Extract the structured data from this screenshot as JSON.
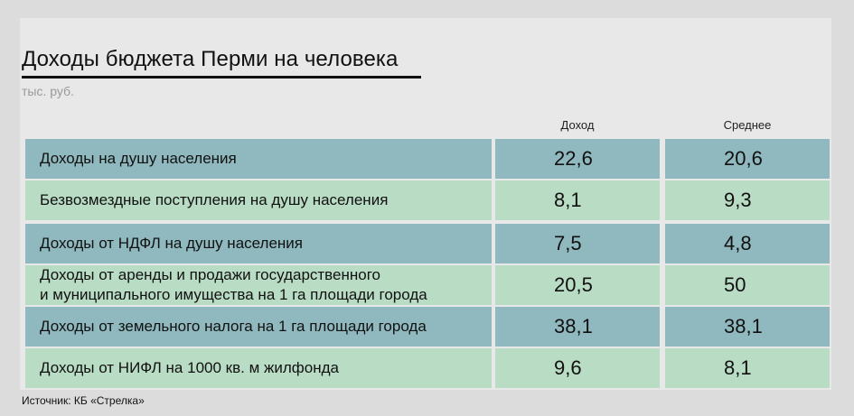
{
  "chart_data": {
    "type": "table",
    "title": "Доходы бюджета Перми на человека",
    "unit": "тыс. руб.",
    "columns": [
      "Доход",
      "Среднее"
    ],
    "rows": [
      {
        "label": "Доходы на душу населения",
        "values": [
          "22,6",
          "20,6"
        ]
      },
      {
        "label": "Безвозмездные поступления на душу населения",
        "values": [
          "8,1",
          "9,3"
        ]
      },
      {
        "label": "Доходы от НДФЛ на душу населения",
        "values": [
          "7,5",
          "4,8"
        ]
      },
      {
        "label": "Доходы от аренды и продажи государственного\nи муниципального имущества на 1 га площади города",
        "values": [
          "20,5",
          "50"
        ]
      },
      {
        "label": "Доходы от земельного налога на 1 га площади города",
        "values": [
          "38,1",
          "38,1"
        ]
      },
      {
        "label": "Доходы от НИФЛ на 1000 кв. м жилфонда",
        "values": [
          "9,6",
          "8,1"
        ]
      }
    ],
    "source": "Источник: КБ «Стрелка»"
  },
  "colors": {
    "row_dark": "#8fb9bf",
    "row_light": "#b9dcc4",
    "background": "#e8e8e8"
  }
}
